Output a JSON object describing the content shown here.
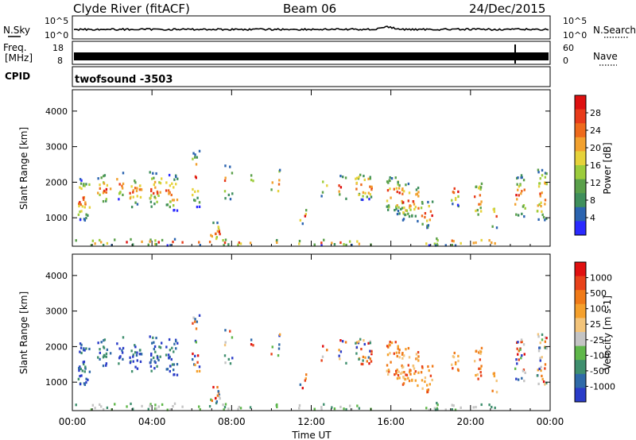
{
  "header": {
    "station": "Clyde River (fitACF)",
    "beam": "Beam 06",
    "date": "24/Dec/2015"
  },
  "top_panels": {
    "nsky_label": "N.Sky",
    "nsky_ticks": [
      "10^5",
      "10^0"
    ],
    "nsearch_label": "N.Search",
    "freq_label": "Freq.",
    "freq_unit": "[MHz]",
    "freq_ticks": [
      "18",
      "8"
    ],
    "nave_label": "Nave",
    "nave_ticks": [
      "60",
      "0"
    ],
    "cpid_label": "CPID",
    "cpid_value": "twofsound -3503"
  },
  "chart_data": [
    {
      "type": "heatmap",
      "name": "power",
      "ylabel": "Slant Range [km]",
      "xlabel": "",
      "y_ticks": [
        "1000",
        "2000",
        "3000",
        "4000"
      ],
      "ylim": [
        200,
        4600
      ],
      "x_ticks": [
        "00:00",
        "04:00",
        "08:00",
        "12:00",
        "16:00",
        "20:00",
        "00:00"
      ],
      "colorbar_label": "Power [dB]",
      "colorbar_ticks": [
        "4",
        "8",
        "12",
        "16",
        "20",
        "24",
        "28"
      ],
      "colorbar_colors": [
        "#2a2aff",
        "#2b64b0",
        "#3f8f5c",
        "#5aa04a",
        "#9ccc3c",
        "#e6d23a",
        "#f2a12e",
        "#ee6a1c",
        "#e83b1a",
        "#dd1010"
      ]
    },
    {
      "type": "heatmap",
      "name": "velocity",
      "ylabel": "Slant Range [km]",
      "xlabel": "Time UT",
      "y_ticks": [
        "1000",
        "2000",
        "3000",
        "4000"
      ],
      "ylim": [
        200,
        4600
      ],
      "x_ticks": [
        "00:00",
        "04:00",
        "08:00",
        "12:00",
        "16:00",
        "20:00",
        "00:00"
      ],
      "colorbar_label": "Velocity [m s-1]",
      "colorbar_ticks": [
        "1000",
        "500",
        "100",
        "25",
        "-25",
        "-100",
        "-500",
        "-1000"
      ],
      "colorbar_colors": [
        "#2a3cc8",
        "#2f6aa8",
        "#3f8f6e",
        "#5fb74a",
        "#c4c4c4",
        "#f3c47a",
        "#f5a02c",
        "#f07a18",
        "#e8421a",
        "#e01010"
      ]
    }
  ]
}
